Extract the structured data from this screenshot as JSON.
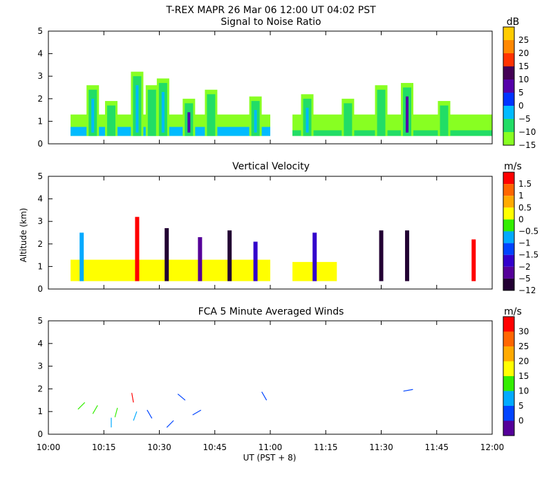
{
  "header": {
    "title_line": "T-REX   MAPR 26 Mar 06   12:00 UT  04:02  PST"
  },
  "x_axis": {
    "label": "UT  (PST + 8)",
    "ticks": [
      "10:00",
      "10:15",
      "10:30",
      "10:45",
      "11:00",
      "11:15",
      "11:30",
      "11:45",
      "12:00"
    ],
    "range_minutes": [
      0,
      120
    ]
  },
  "y_axis": {
    "label": "Altitude (km)",
    "ticks": [
      "0",
      "1",
      "2",
      "3",
      "4",
      "5"
    ],
    "range": [
      0,
      5
    ]
  },
  "colorbars": {
    "snr": {
      "unit": "dB",
      "labels": [
        "25",
        "20",
        "15",
        "10",
        "5",
        "0",
        "−5",
        "−10",
        "−15"
      ],
      "colors": [
        "#ffcc00",
        "#ff8800",
        "#ff3300",
        "#440055",
        "#5500aa",
        "#0033ff",
        "#00bbff",
        "#22dd66",
        "#88ff22"
      ]
    },
    "vv": {
      "unit": "m/s",
      "labels": [
        "1.5",
        "1",
        "0.5",
        "0",
        "−0.5",
        "−1",
        "−1.5",
        "−2",
        "−5",
        "−12"
      ],
      "colors": [
        "#ff0000",
        "#ff6600",
        "#ffaa00",
        "#ffff00",
        "#33ee00",
        "#00aaff",
        "#0044ff",
        "#3300cc",
        "#550099",
        "#220033"
      ]
    },
    "wind": {
      "unit": "m/s",
      "labels": [
        "30",
        "25",
        "20",
        "15",
        "10",
        "5",
        "0"
      ],
      "colors": [
        "#ff0000",
        "#ff6600",
        "#ffaa00",
        "#ffff00",
        "#33ee00",
        "#00aaff",
        "#0044ff",
        "#550099"
      ]
    }
  },
  "chart_data": [
    {
      "type": "heatmap",
      "title": "Signal to Noise Ratio",
      "xlabel": "UT  (PST + 8)",
      "ylabel": "Altitude (km)",
      "xlim_minutes": [
        0,
        120
      ],
      "ylim": [
        0,
        5
      ],
      "colorbar_unit": "dB",
      "data_gap_minutes": [
        60,
        66
      ],
      "segments": [
        {
          "t0": 6,
          "t1": 60,
          "base_km": 0.35,
          "top_km": 1.3,
          "value_db": -12,
          "note": "strong low-level layer"
        },
        {
          "t0": 6,
          "t1": 60,
          "base_km": 0.35,
          "top_km": 0.75,
          "value_db": -3
        },
        {
          "t0": 66,
          "t1": 120,
          "base_km": 0.35,
          "top_km": 1.3,
          "value_db": -13
        },
        {
          "t0": 66,
          "t1": 120,
          "base_km": 0.35,
          "top_km": 0.6,
          "value_db": -8
        }
      ],
      "plumes": [
        {
          "t": 12,
          "top_km": 2.6,
          "core_db": -5
        },
        {
          "t": 17,
          "top_km": 1.9,
          "core_db": -8
        },
        {
          "t": 24,
          "top_km": 3.2,
          "core_db": -5
        },
        {
          "t": 28,
          "top_km": 2.6,
          "core_db": -10
        },
        {
          "t": 31,
          "top_km": 2.9,
          "core_db": -5
        },
        {
          "t": 38,
          "top_km": 2.0,
          "core_db": 5
        },
        {
          "t": 44,
          "top_km": 2.4,
          "core_db": -10
        },
        {
          "t": 56,
          "top_km": 2.1,
          "core_db": -5
        },
        {
          "t": 70,
          "top_km": 2.2,
          "core_db": -5
        },
        {
          "t": 81,
          "top_km": 2.0,
          "core_db": -10
        },
        {
          "t": 90,
          "top_km": 2.6,
          "core_db": -8
        },
        {
          "t": 97,
          "top_km": 2.7,
          "core_db": 5
        },
        {
          "t": 107,
          "top_km": 1.9,
          "core_db": -10
        }
      ]
    },
    {
      "type": "heatmap",
      "title": "Vertical Velocity",
      "xlabel": "UT  (PST + 8)",
      "ylabel": "Altitude (km)",
      "xlim_minutes": [
        0,
        120
      ],
      "ylim": [
        0,
        5
      ],
      "colorbar_unit": "m/s",
      "data_gap_minutes": [
        60,
        66
      ],
      "segments": [
        {
          "t0": 6,
          "t1": 60,
          "base_km": 0.35,
          "top_km": 1.3,
          "value_ms": 0.3
        },
        {
          "t0": 66,
          "t1": 78,
          "base_km": 0.35,
          "top_km": 1.2,
          "value_ms": 0.0
        }
      ],
      "streaks": [
        {
          "t": 9,
          "top_km": 2.5,
          "value_ms": -1.0
        },
        {
          "t": 24,
          "top_km": 3.2,
          "value_ms": 1.5
        },
        {
          "t": 32,
          "top_km": 2.7,
          "value_ms": -12
        },
        {
          "t": 41,
          "top_km": 2.3,
          "value_ms": -5
        },
        {
          "t": 49,
          "top_km": 2.6,
          "value_ms": -12
        },
        {
          "t": 56,
          "top_km": 2.1,
          "value_ms": -2
        },
        {
          "t": 72,
          "top_km": 2.5,
          "value_ms": -2
        },
        {
          "t": 90,
          "top_km": 2.6,
          "value_ms": -12
        },
        {
          "t": 97,
          "top_km": 2.6,
          "value_ms": -12
        },
        {
          "t": 115,
          "top_km": 2.2,
          "value_ms": 1.5
        }
      ]
    },
    {
      "type": "scatter",
      "subtype": "wind_barbs",
      "title": "FCA 5 Minute Averaged Winds",
      "xlabel": "UT  (PST + 8)",
      "ylabel": "Altitude (km)",
      "xlim_minutes": [
        0,
        120
      ],
      "ylim": [
        0,
        5
      ],
      "colorbar_unit": "m/s",
      "barbs": [
        {
          "t": 8,
          "alt_km": 1.1,
          "speed_ms": 12,
          "dir_deg": 45
        },
        {
          "t": 12,
          "alt_km": 0.9,
          "speed_ms": 12,
          "dir_deg": 30
        },
        {
          "t": 17,
          "alt_km": 0.3,
          "speed_ms": 5,
          "dir_deg": 0
        },
        {
          "t": 18,
          "alt_km": 0.75,
          "speed_ms": 10,
          "dir_deg": 15
        },
        {
          "t": 23,
          "alt_km": 1.4,
          "speed_ms": 30,
          "dir_deg": 350
        },
        {
          "t": 23,
          "alt_km": 0.6,
          "speed_ms": 5,
          "dir_deg": 20
        },
        {
          "t": 28,
          "alt_km": 0.7,
          "speed_ms": 0,
          "dir_deg": 330
        },
        {
          "t": 32,
          "alt_km": 0.3,
          "speed_ms": 3,
          "dir_deg": 45
        },
        {
          "t": 37,
          "alt_km": 1.5,
          "speed_ms": 2,
          "dir_deg": 310
        },
        {
          "t": 39,
          "alt_km": 0.85,
          "speed_ms": 2,
          "dir_deg": 60
        },
        {
          "t": 59,
          "alt_km": 1.5,
          "speed_ms": 2,
          "dir_deg": 330
        },
        {
          "t": 96,
          "alt_km": 1.9,
          "speed_ms": 3,
          "dir_deg": 80
        }
      ]
    }
  ]
}
